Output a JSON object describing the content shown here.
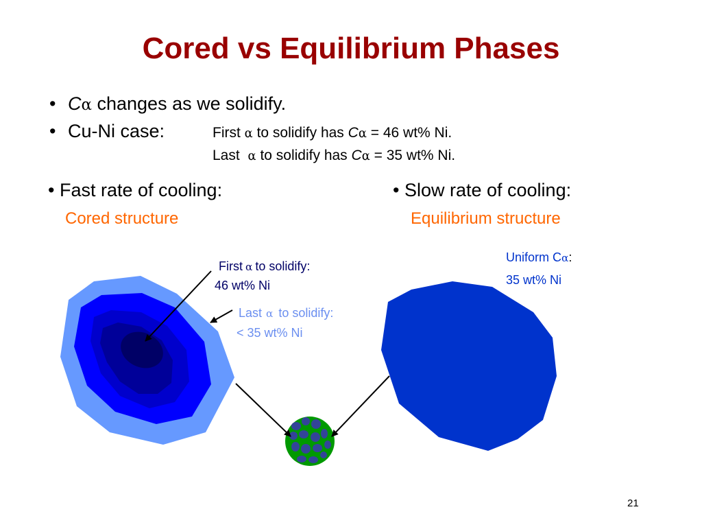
{
  "title": "Cored vs Equilibrium Phases",
  "bullet_char": "•",
  "bullets": [
    {
      "symbol": "C",
      "subscript": "α",
      "text": "changes as we solidify."
    },
    {
      "text": "Cu-Ni case:"
    }
  ],
  "cuni_case": {
    "line1": {
      "pre": "First",
      "alpha": "α",
      "mid": "to solidify has",
      "sym": "C",
      "sub": "α",
      "post": "= 46 wt% Ni."
    },
    "line2": {
      "pre": "Last",
      "alpha": "α",
      "mid": "to solidify has",
      "sym": "C",
      "sub": "α",
      "post": "= 35 wt% Ni."
    }
  },
  "fast": {
    "heading": "• Fast rate of cooling:",
    "structure": "Cored structure"
  },
  "slow": {
    "heading": "• Slow rate of cooling:",
    "structure": "Equilibrium structure"
  },
  "labels": {
    "first": {
      "pre": "First",
      "alpha": "α",
      "post": "to solidify:",
      "line2": "46 wt% Ni"
    },
    "last": {
      "pre": "Last",
      "alpha": "α",
      "post": "to solidify:",
      "line2": "< 35 wt% Ni"
    },
    "uniform": {
      "pre": "Uniform C",
      "alpha": "α",
      "colon": ":",
      "line2": "35 wt% Ni"
    }
  },
  "colors": {
    "title": "#990000",
    "structure_text": "#ff6600",
    "grain_outer": "#6699ff",
    "grain_ring2": "#0000ff",
    "grain_ring3": "#0000cc",
    "grain_ring4": "#000099",
    "grain_core": "#000066",
    "uniform_grain": "#0033cc",
    "micro_circle": "#009900",
    "micro_grains": "#334499"
  },
  "page_number": "21"
}
